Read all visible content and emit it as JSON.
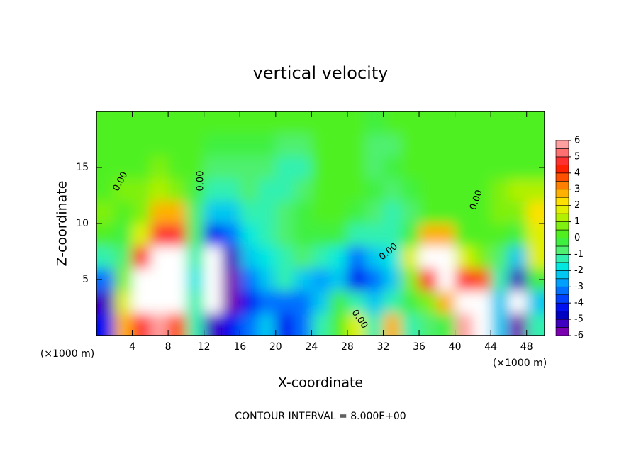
{
  "chart_data": {
    "type": "heatmap",
    "title": "vertical velocity",
    "x_label": "X-coordinate",
    "y_label": "Z-coordinate",
    "x_unit": "(×1000 m)",
    "footer": "CONTOUR INTERVAL = 8.000E+00",
    "contour_label": "0.00",
    "xlim": [
      0,
      50
    ],
    "ylim": [
      0,
      20
    ],
    "xticks": [
      4,
      8,
      12,
      16,
      20,
      24,
      28,
      32,
      36,
      40,
      44,
      48
    ],
    "yticks": [
      5,
      10,
      15
    ],
    "x": [
      1,
      3,
      5,
      7,
      9,
      11,
      13,
      15,
      17,
      19,
      21,
      23,
      25,
      27,
      29,
      31,
      33,
      35,
      37,
      39,
      41,
      43,
      45,
      47,
      49
    ],
    "y": [
      1,
      3,
      5,
      7,
      9,
      11,
      13,
      15,
      17,
      19
    ],
    "z": [
      [
        -4,
        3,
        5,
        6,
        4,
        -1,
        -5,
        -4,
        -3,
        -2,
        -4,
        -3,
        -1,
        0.5,
        2,
        -1,
        3,
        -1,
        -0.5,
        0,
        6,
        7,
        -2,
        -6,
        -1
      ],
      [
        -5,
        2,
        8,
        9,
        7,
        -1,
        -8,
        -6,
        -4,
        -3,
        -3,
        -3,
        -2,
        0,
        -1,
        -2,
        -1,
        0,
        1,
        3,
        8,
        9,
        -2,
        -8,
        -2
      ],
      [
        -3,
        1,
        8,
        9,
        7,
        -1.5,
        -8,
        -6,
        -3,
        -2,
        -1,
        -2,
        -2.5,
        -2,
        -4,
        -3,
        -2,
        1,
        5,
        7,
        5,
        4,
        -1,
        -5,
        0
      ],
      [
        -1,
        -0.5,
        5,
        8,
        7,
        -1,
        -7,
        -5,
        -2,
        -1.5,
        -1,
        -0.5,
        -1,
        -1.5,
        -3,
        -2,
        -1.5,
        2,
        7,
        8,
        2,
        1,
        -0.5,
        -2,
        2
      ],
      [
        0.5,
        0,
        2,
        5,
        5,
        -0.5,
        -4,
        -3,
        -1.5,
        -1,
        -0.5,
        0,
        0,
        0,
        -1,
        -1,
        -1,
        0,
        3,
        3,
        0.5,
        0.5,
        0.5,
        0,
        2
      ],
      [
        1,
        0.5,
        1,
        3,
        3,
        -0.5,
        -2,
        -2,
        -1,
        -1,
        -0.5,
        0,
        0.5,
        0.3,
        0,
        -0.5,
        -1,
        -0.5,
        0.5,
        0.5,
        0.3,
        0.3,
        1,
        1,
        2.5
      ],
      [
        0.5,
        0.8,
        0.8,
        1.5,
        1,
        0,
        -1,
        -1,
        -0.8,
        -1,
        -1,
        -0.5,
        0.3,
        0.3,
        0.3,
        -0.3,
        -0.5,
        -0.3,
        0.3,
        0.3,
        0.3,
        0.3,
        1,
        1.5,
        1.5
      ],
      [
        0.5,
        0.5,
        0.5,
        1,
        0.5,
        0.3,
        -0.5,
        -0.5,
        -0.5,
        -0.5,
        -1,
        -1,
        0.3,
        0.3,
        0.3,
        -0.5,
        -0.3,
        0.3,
        0.3,
        0.3,
        0.3,
        0.3,
        0.5,
        0.5,
        0.5
      ],
      [
        0.5,
        0.5,
        0.5,
        0.5,
        0.3,
        0.3,
        0,
        0,
        0,
        -0.3,
        -0.5,
        -0.5,
        0.3,
        0.3,
        0.3,
        -0.5,
        -0.5,
        0.3,
        0.3,
        0.3,
        0.3,
        0.3,
        0.3,
        0.3,
        0.3
      ],
      [
        0.5,
        0.5,
        0.5,
        0.3,
        0.3,
        0.3,
        0.3,
        0.5,
        0.3,
        0.3,
        0.5,
        0.5,
        0.3,
        0.3,
        0.3,
        -0.3,
        0.3,
        0.3,
        0.3,
        0.3,
        0.3,
        0.3,
        0.3,
        0.3,
        0.3
      ]
    ],
    "levels": [
      -6,
      -5.5,
      -5,
      -4.5,
      -4,
      -3.5,
      -3,
      -2.5,
      -2,
      -1.5,
      -1,
      -0.5,
      0,
      0.5,
      1,
      1.5,
      2,
      2.5,
      3,
      3.5,
      4,
      4.5,
      5,
      5.5,
      6
    ],
    "colors": [
      "#7a00b0",
      "#4000c0",
      "#0000c0",
      "#0010f0",
      "#0040ff",
      "#0070ff",
      "#00a0ff",
      "#00c8f0",
      "#00e8e0",
      "#30f0b0",
      "#50f070",
      "#40f040",
      "#50f020",
      "#80f010",
      "#b0f000",
      "#e0f000",
      "#ffe000",
      "#ffb000",
      "#ff8000",
      "#ff5000",
      "#ff2000",
      "#ff3030",
      "#ff7070",
      "#ffa0a0"
    ],
    "extend_color": "#ffffff",
    "colorbar_ticks": [
      6,
      5,
      4,
      3,
      2,
      1,
      0,
      -1,
      -2,
      -3,
      -4,
      -5,
      -6
    ]
  }
}
